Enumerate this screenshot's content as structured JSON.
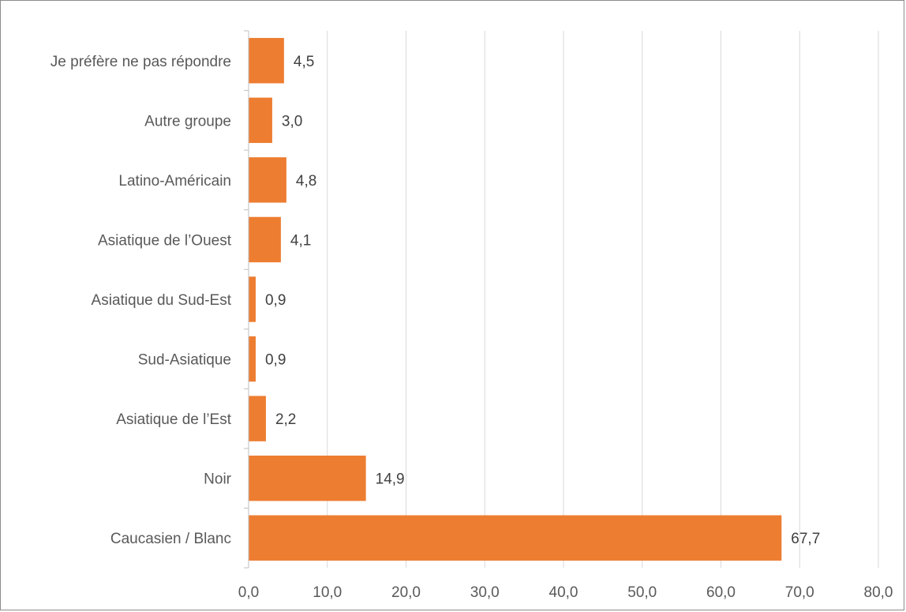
{
  "chart_data": {
    "type": "bar",
    "orientation": "horizontal",
    "categories": [
      "Je préfère ne pas répondre",
      "Autre groupe",
      "Latino-Américain",
      "Asiatique de l’Ouest",
      "Asiatique du Sud-Est",
      "Sud-Asiatique",
      "Asiatique de l’Est",
      "Noir",
      "Caucasien / Blanc"
    ],
    "values": [
      4.5,
      3.0,
      4.8,
      4.1,
      0.9,
      0.9,
      2.2,
      14.9,
      67.7
    ],
    "value_labels": [
      "4,5",
      "3,0",
      "4,8",
      "4,1",
      "0,9",
      "0,9",
      "2,2",
      "14,9",
      "67,7"
    ],
    "xlim": [
      0,
      80
    ],
    "x_ticks": [
      0,
      10,
      20,
      30,
      40,
      50,
      60,
      70,
      80
    ],
    "x_tick_labels": [
      "0,0",
      "10,0",
      "20,0",
      "30,0",
      "40,0",
      "50,0",
      "60,0",
      "70,0",
      "80,0"
    ],
    "grid": "vertical",
    "bar_color": "#ED7D31",
    "grid_color": "#D9D9D9",
    "axis_color": "#BFBFBF",
    "title": "",
    "xlabel": "",
    "ylabel": ""
  }
}
